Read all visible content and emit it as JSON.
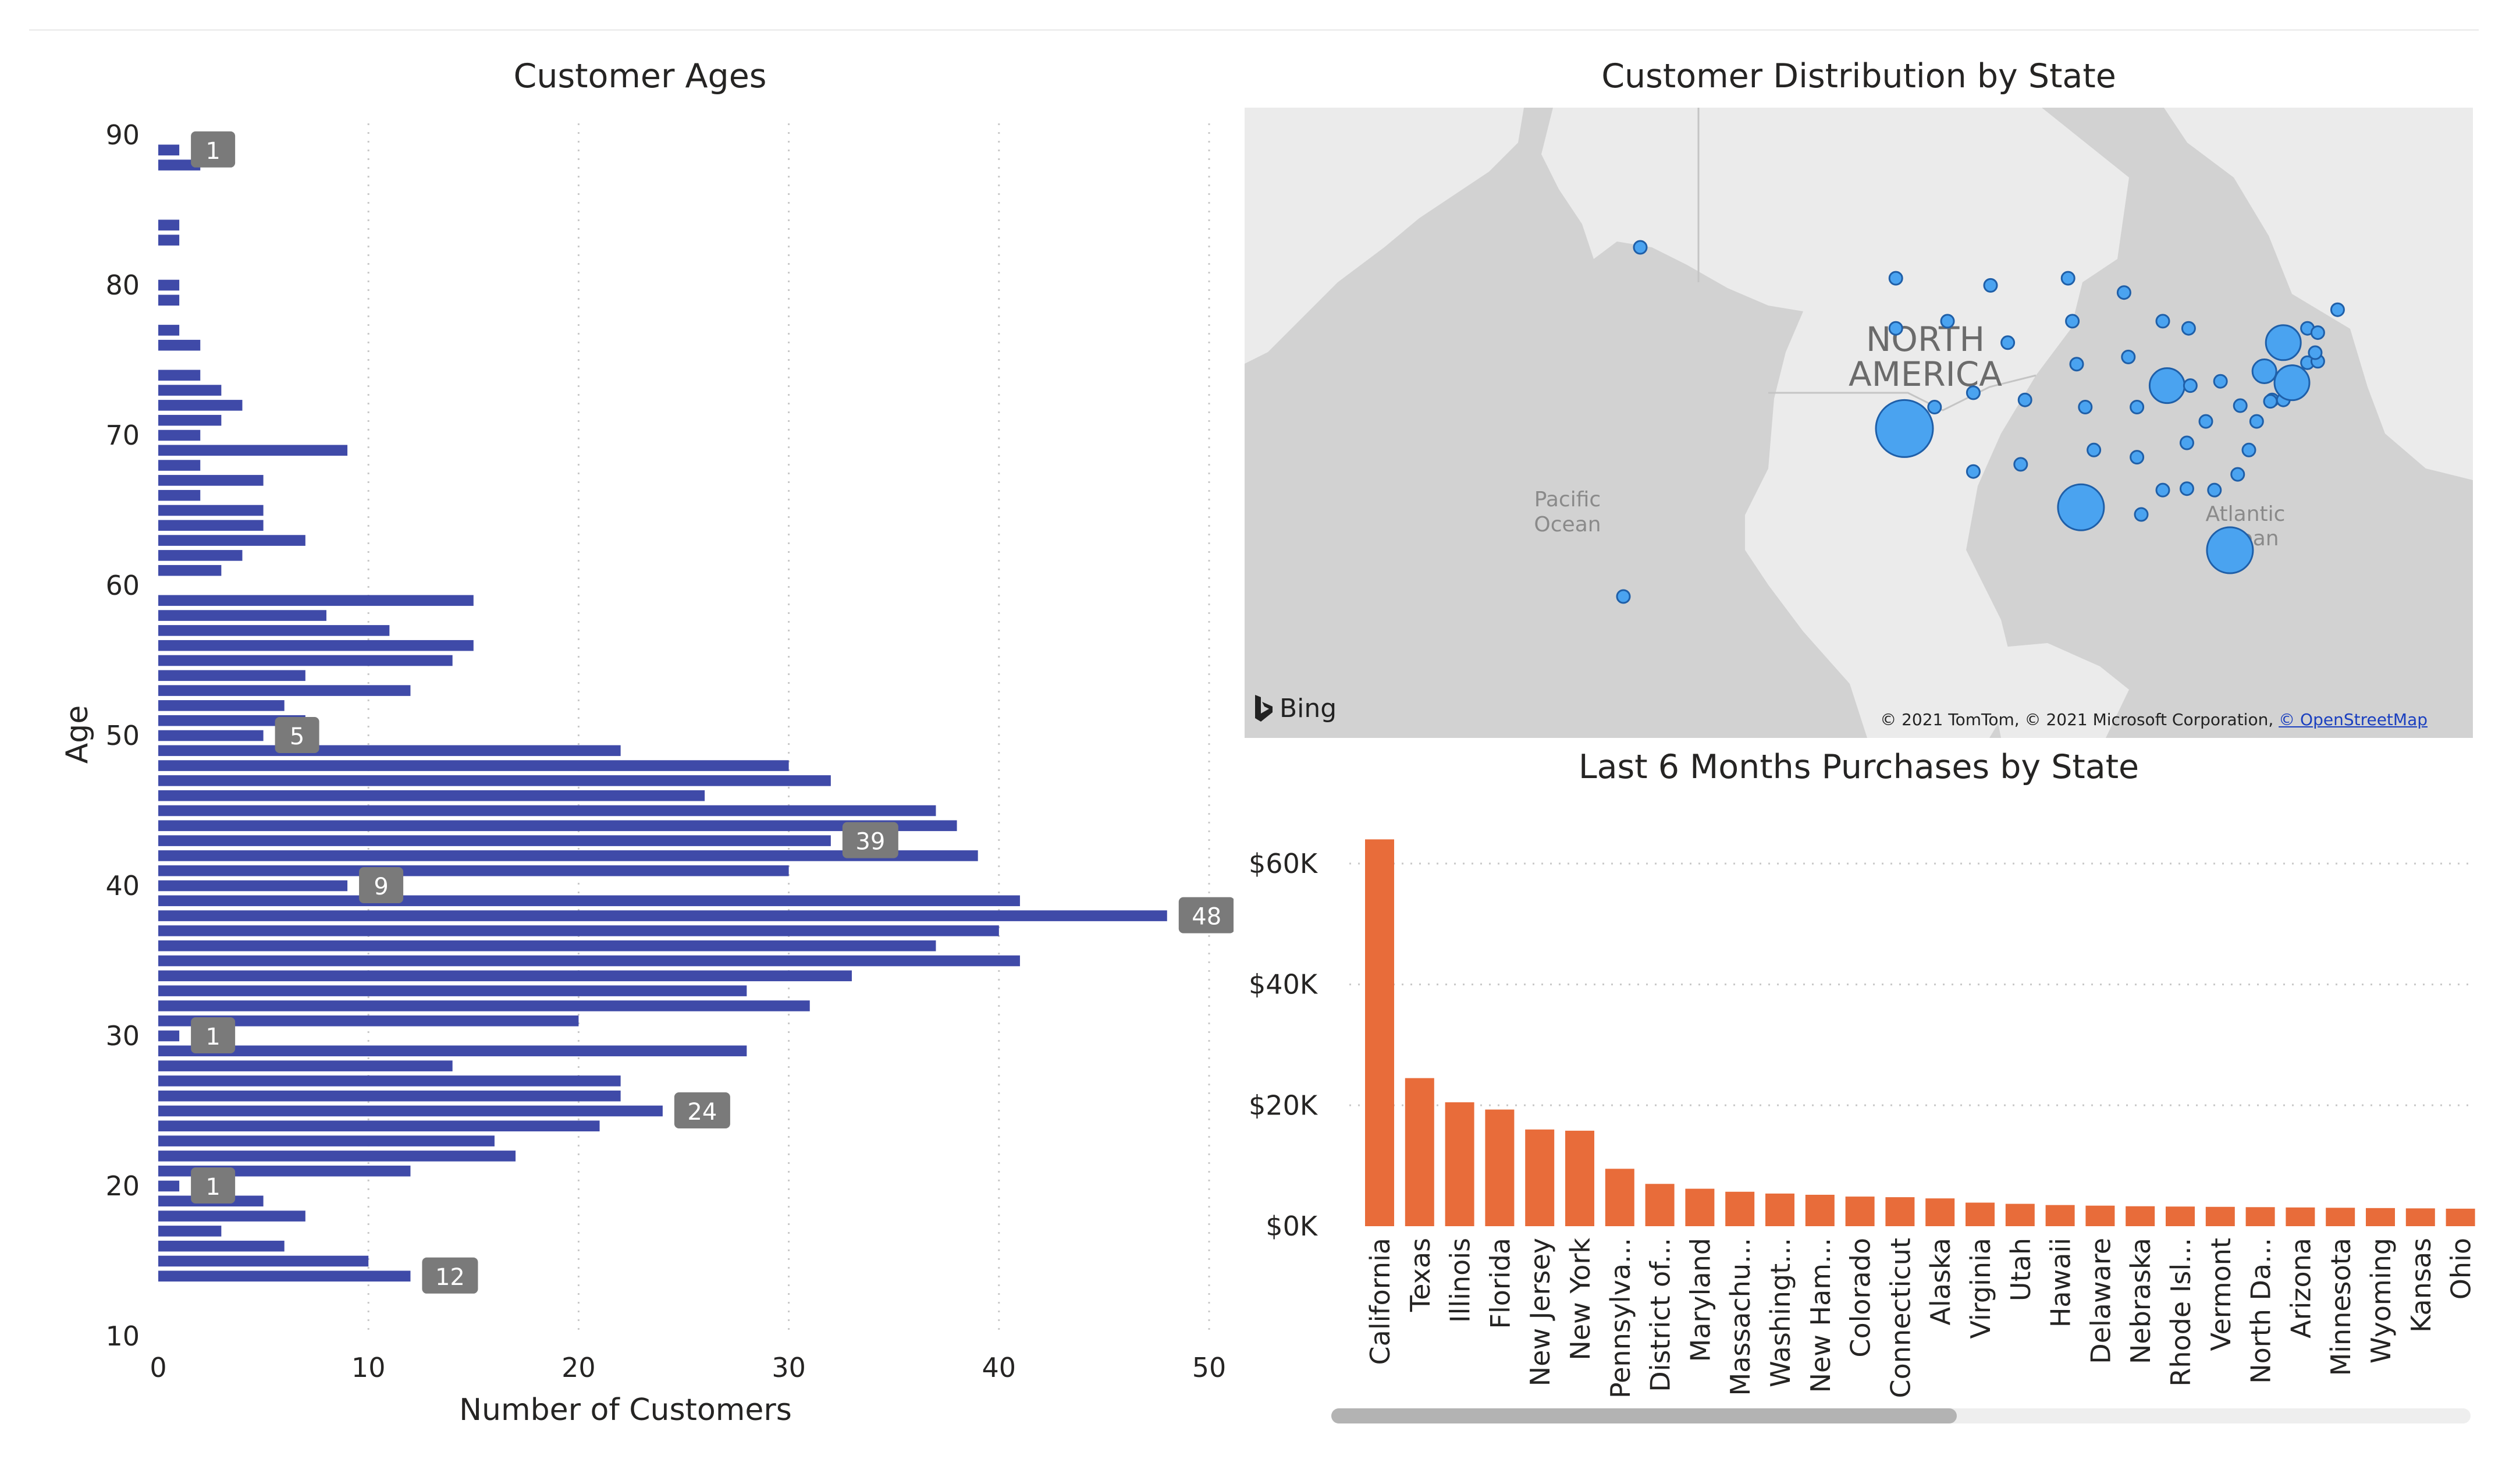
{
  "colors": {
    "bar_blue": "#3f4aa8",
    "bar_orange": "#e86c3a",
    "bubble": "#4aa3f0",
    "label_bg": "#7a7a7a"
  },
  "age_chart": {
    "title": "Customer Ages",
    "xlabel": "Number of Customers",
    "ylabel": "Age",
    "xticks": [
      "0",
      "10",
      "20",
      "30",
      "40",
      "50"
    ],
    "yticks": [
      "10",
      "20",
      "30",
      "40",
      "50",
      "60",
      "70",
      "80",
      "90"
    ]
  },
  "map": {
    "title": "Customer Distribution by State",
    "labels": {
      "continent_line1": "NORTH",
      "continent_line2": "AMERICA",
      "pacific_line1": "Pacific",
      "pacific_line2": "Ocean",
      "atlantic_line1": "Atlantic",
      "atlantic_line2": "Ocean"
    },
    "bing": "Bing",
    "copyright": "© 2021 TomTom, © 2021 Microsoft Corporation, ",
    "osm_link": "© OpenStreetMap"
  },
  "purchase_chart": {
    "title": "Last 6 Months Purchases by State",
    "yticks": [
      "$0K",
      "$20K",
      "$40K",
      "$60K"
    ]
  },
  "chart_data": [
    {
      "type": "bar",
      "orientation": "horizontal",
      "title": "Customer Ages",
      "xlabel": "Number of Customers",
      "ylabel": "Age",
      "xlim": [
        0,
        50
      ],
      "ylim": [
        10,
        90
      ],
      "grid": true,
      "categories": [
        14,
        15,
        16,
        17,
        18,
        19,
        20,
        21,
        22,
        23,
        24,
        25,
        26,
        27,
        28,
        29,
        30,
        31,
        32,
        33,
        34,
        35,
        36,
        37,
        38,
        39,
        40,
        41,
        42,
        43,
        44,
        45,
        46,
        47,
        48,
        49,
        50,
        51,
        52,
        53,
        54,
        55,
        56,
        57,
        58,
        59,
        61,
        62,
        63,
        64,
        65,
        66,
        67,
        68,
        69,
        70,
        71,
        72,
        73,
        74,
        76,
        77,
        79,
        80,
        83,
        84,
        88,
        89
      ],
      "values": [
        12,
        10,
        6,
        3,
        7,
        5,
        1,
        12,
        17,
        16,
        21,
        24,
        22,
        22,
        14,
        28,
        1,
        20,
        31,
        28,
        33,
        41,
        37,
        40,
        48,
        41,
        9,
        30,
        39,
        32,
        38,
        37,
        26,
        32,
        30,
        22,
        5,
        7,
        6,
        12,
        7,
        14,
        15,
        11,
        8,
        15,
        3,
        4,
        7,
        5,
        5,
        2,
        5,
        2,
        9,
        2,
        3,
        4,
        3,
        2,
        2,
        1,
        1,
        1,
        1,
        1,
        2,
        1
      ],
      "data_labels": [
        {
          "age": 14,
          "text": "12"
        },
        {
          "age": 20,
          "text": "1"
        },
        {
          "age": 25,
          "text": "24"
        },
        {
          "age": 30,
          "text": "1"
        },
        {
          "age": 38,
          "text": "48"
        },
        {
          "age": 40,
          "text": "9"
        },
        {
          "age": 43,
          "text": "39"
        },
        {
          "age": 50,
          "text": "5"
        },
        {
          "age": 89,
          "text": "1"
        }
      ]
    },
    {
      "type": "bar",
      "title": "Last 6 Months Purchases by State",
      "ylim": [
        0,
        70000
      ],
      "grid": true,
      "yticks": [
        "$0K",
        "$20K",
        "$40K",
        "$60K"
      ],
      "categories": [
        "California",
        "Texas",
        "Illinois",
        "Florida",
        "New Jersey",
        "New York",
        "Pennsylva...",
        "District of...",
        "Maryland",
        "Massachu...",
        "Washingt...",
        "New Ham...",
        "Colorado",
        "Connecticut",
        "Alaska",
        "Virginia",
        "Utah",
        "Hawaii",
        "Delaware",
        "Nebraska",
        "Rhode Isl...",
        "Vermont",
        "North Da...",
        "Arizona",
        "Minnesota",
        "Wyoming",
        "Kansas",
        "Ohio"
      ],
      "values": [
        64000,
        24500,
        20500,
        19300,
        16000,
        15800,
        9500,
        7000,
        6200,
        5700,
        5400,
        5200,
        4900,
        4800,
        4600,
        3900,
        3700,
        3500,
        3400,
        3300,
        3250,
        3200,
        3150,
        3100,
        3050,
        3000,
        2950,
        2900
      ]
    },
    {
      "type": "scatter",
      "title": "Customer Distribution by State",
      "kind": "bubble map",
      "points": [
        {
          "lon": -150,
          "lat": 64,
          "size": 1
        },
        {
          "lon": -157,
          "lat": 20,
          "size": 1
        },
        {
          "lon": -120.5,
          "lat": 47.5,
          "size": 1
        },
        {
          "lon": -120.5,
          "lat": 44,
          "size": 1
        },
        {
          "lon": -119.5,
          "lat": 37,
          "size": 5
        },
        {
          "lon": -116,
          "lat": 38.5,
          "size": 1
        },
        {
          "lon": -114.5,
          "lat": 44.5,
          "size": 1
        },
        {
          "lon": -111.5,
          "lat": 39.5,
          "size": 1
        },
        {
          "lon": -111.5,
          "lat": 34,
          "size": 1
        },
        {
          "lon": -109.5,
          "lat": 47,
          "size": 1
        },
        {
          "lon": -107.5,
          "lat": 43,
          "size": 1
        },
        {
          "lon": -105.5,
          "lat": 39,
          "size": 1
        },
        {
          "lon": -106,
          "lat": 34.5,
          "size": 1
        },
        {
          "lon": -100.5,
          "lat": 47.5,
          "size": 1
        },
        {
          "lon": -100,
          "lat": 44.5,
          "size": 1
        },
        {
          "lon": -99.5,
          "lat": 41.5,
          "size": 1
        },
        {
          "lon": -98.5,
          "lat": 38.5,
          "size": 1
        },
        {
          "lon": -97.5,
          "lat": 35.5,
          "size": 1
        },
        {
          "lon": -99,
          "lat": 31.5,
          "size": 4
        },
        {
          "lon": -94,
          "lat": 46.5,
          "size": 1
        },
        {
          "lon": -93.5,
          "lat": 42,
          "size": 1
        },
        {
          "lon": -92.5,
          "lat": 38.5,
          "size": 1
        },
        {
          "lon": -92.5,
          "lat": 35,
          "size": 1
        },
        {
          "lon": -92,
          "lat": 31,
          "size": 1
        },
        {
          "lon": -89.5,
          "lat": 44.5,
          "size": 1
        },
        {
          "lon": -89,
          "lat": 40,
          "size": 3
        },
        {
          "lon": -89.5,
          "lat": 32.7,
          "size": 1
        },
        {
          "lon": -86.5,
          "lat": 44,
          "size": 1
        },
        {
          "lon": -86.3,
          "lat": 40,
          "size": 1
        },
        {
          "lon": -86.7,
          "lat": 36,
          "size": 1
        },
        {
          "lon": -86.7,
          "lat": 32.8,
          "size": 1
        },
        {
          "lon": -84.5,
          "lat": 37.5,
          "size": 1
        },
        {
          "lon": -82.8,
          "lat": 40.3,
          "size": 1
        },
        {
          "lon": -83.5,
          "lat": 32.7,
          "size": 1
        },
        {
          "lon": -81.7,
          "lat": 28.5,
          "size": 4
        },
        {
          "lon": -80.5,
          "lat": 38.6,
          "size": 1
        },
        {
          "lon": -80.8,
          "lat": 33.8,
          "size": 1
        },
        {
          "lon": -79.5,
          "lat": 35.5,
          "size": 1
        },
        {
          "lon": -78.6,
          "lat": 37.5,
          "size": 1
        },
        {
          "lon": -77.7,
          "lat": 41,
          "size": 2
        },
        {
          "lon": -76.8,
          "lat": 39,
          "size": 1
        },
        {
          "lon": -77,
          "lat": 38.9,
          "size": 1
        },
        {
          "lon": -75.5,
          "lat": 39,
          "size": 1
        },
        {
          "lon": -74.5,
          "lat": 40.2,
          "size": 3
        },
        {
          "lon": -75.5,
          "lat": 43,
          "size": 3
        },
        {
          "lon": -72.7,
          "lat": 41.6,
          "size": 1
        },
        {
          "lon": -71.5,
          "lat": 41.7,
          "size": 1
        },
        {
          "lon": -71.8,
          "lat": 42.3,
          "size": 1
        },
        {
          "lon": -72.7,
          "lat": 44,
          "size": 1
        },
        {
          "lon": -71.5,
          "lat": 43.7,
          "size": 1
        },
        {
          "lon": -69.2,
          "lat": 45.3,
          "size": 1
        }
      ]
    }
  ]
}
